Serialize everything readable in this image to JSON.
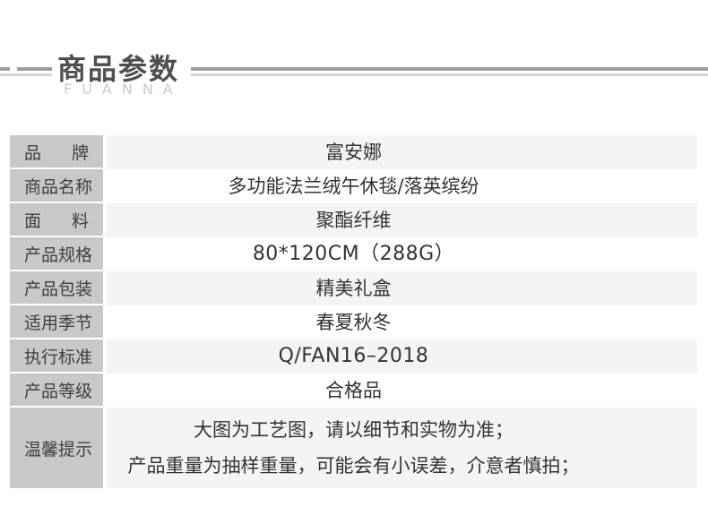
{
  "header": {
    "title": "商品参数",
    "subtitle": "FUANNA"
  },
  "colors": {
    "page_bg": "#ffffff",
    "title_text": "#4f4f4f",
    "subtitle_text": "#cbcbcb",
    "rule_dark": "#9d9d9d",
    "rule_light": "#d4d4d4",
    "label_bg": "#c9c8c6",
    "label_text": "#3f3f3f",
    "value_text": "#333333",
    "value_bg_odd": "#f5f4f2",
    "value_bg_even": "#ffffff"
  },
  "table": {
    "rows": [
      {
        "label": "品牌",
        "value": "富安娜"
      },
      {
        "label": "商品名称",
        "value": "多功能法兰绒午休毯/落英缤纷"
      },
      {
        "label": "面料",
        "value": "聚酯纤维"
      },
      {
        "label": "产品规格",
        "value": "80*120CM（288G）",
        "latin": true
      },
      {
        "label": "产品包装",
        "value": "精美礼盒"
      },
      {
        "label": "适用季节",
        "value": "春夏秋冬"
      },
      {
        "label": "执行标准",
        "value": "Q/FAN16–2018",
        "latin": true
      },
      {
        "label": "产品等级",
        "value": "合格品"
      },
      {
        "label": "温馨提示",
        "lines": [
          "大图为工艺图，请以细节和实物为准；",
          "产品重量为抽样重量，可能会有小误差，介意者慎拍；"
        ]
      }
    ]
  }
}
